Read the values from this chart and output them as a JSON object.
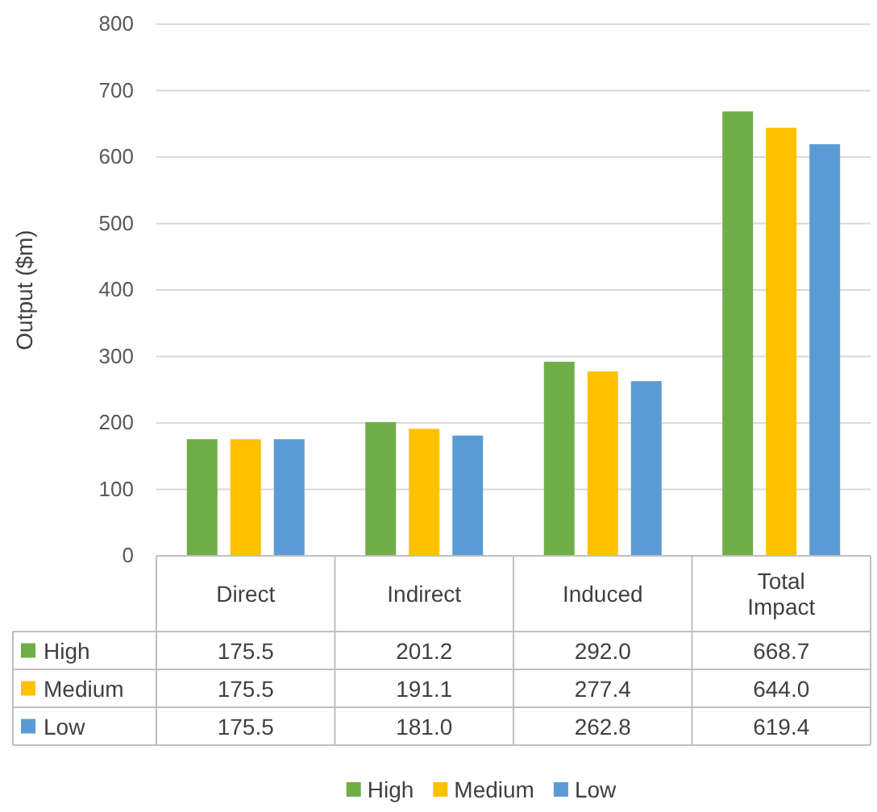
{
  "chart_data": {
    "type": "bar",
    "ylabel": "Output ($m)",
    "categories": [
      "Direct",
      "Indirect",
      "Induced",
      "Total Impact"
    ],
    "series": [
      {
        "name": "High",
        "color": "#70ad47",
        "values": [
          175.5,
          201.2,
          292.0,
          668.7
        ],
        "value_labels": [
          "175.5",
          "201.2",
          "292.0",
          "668.7"
        ]
      },
      {
        "name": "Medium",
        "color": "#ffc000",
        "values": [
          175.5,
          191.1,
          277.4,
          644.0
        ],
        "value_labels": [
          "175.5",
          "191.1",
          "277.4",
          "644.0"
        ]
      },
      {
        "name": "Low",
        "color": "#5b9bd5",
        "values": [
          175.5,
          181.0,
          262.8,
          619.4
        ],
        "value_labels": [
          "175.5",
          "181.0",
          "262.8",
          "619.4"
        ]
      }
    ],
    "ylim": [
      0,
      800
    ],
    "yticks": [
      0,
      100,
      200,
      300,
      400,
      500,
      600,
      700,
      800
    ],
    "grid": "y",
    "legend": "bottom"
  }
}
